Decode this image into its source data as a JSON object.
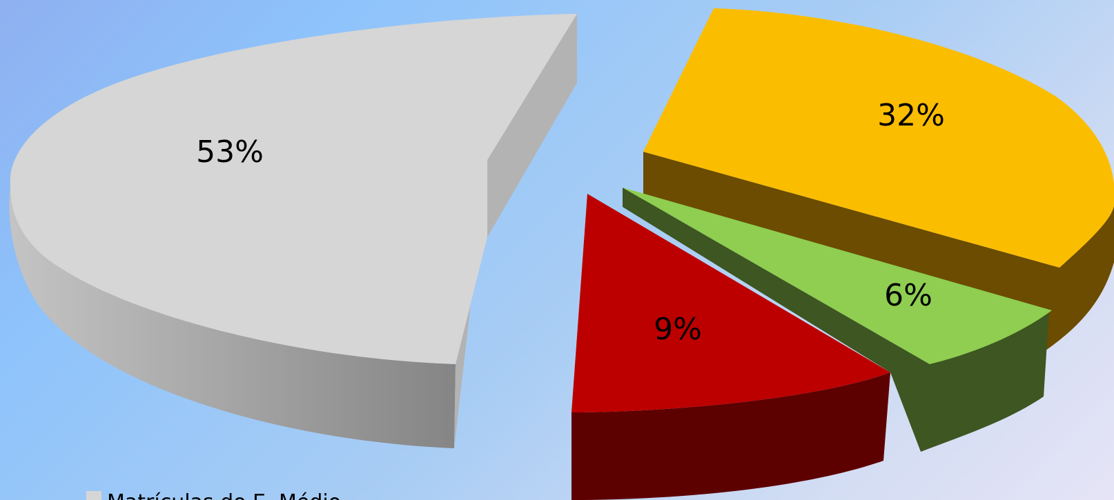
{
  "chart_data": {
    "type": "pie",
    "style": "3d-exploded",
    "title": "",
    "slices": [
      {
        "label": "Matrículas do E. Médio",
        "value": 53,
        "display": "53%",
        "color": "#d6d6d6"
      },
      {
        "label": "",
        "value": 32,
        "display": "32%",
        "color": "#fbbd00"
      },
      {
        "label": "",
        "value": 6,
        "display": "6%",
        "color": "#8fce50"
      },
      {
        "label": "",
        "value": 9,
        "display": "9%",
        "color": "#bc0000"
      }
    ],
    "legend": {
      "placement": "bottom-left",
      "entries": [
        "Matrículas do E. Médio"
      ]
    }
  }
}
